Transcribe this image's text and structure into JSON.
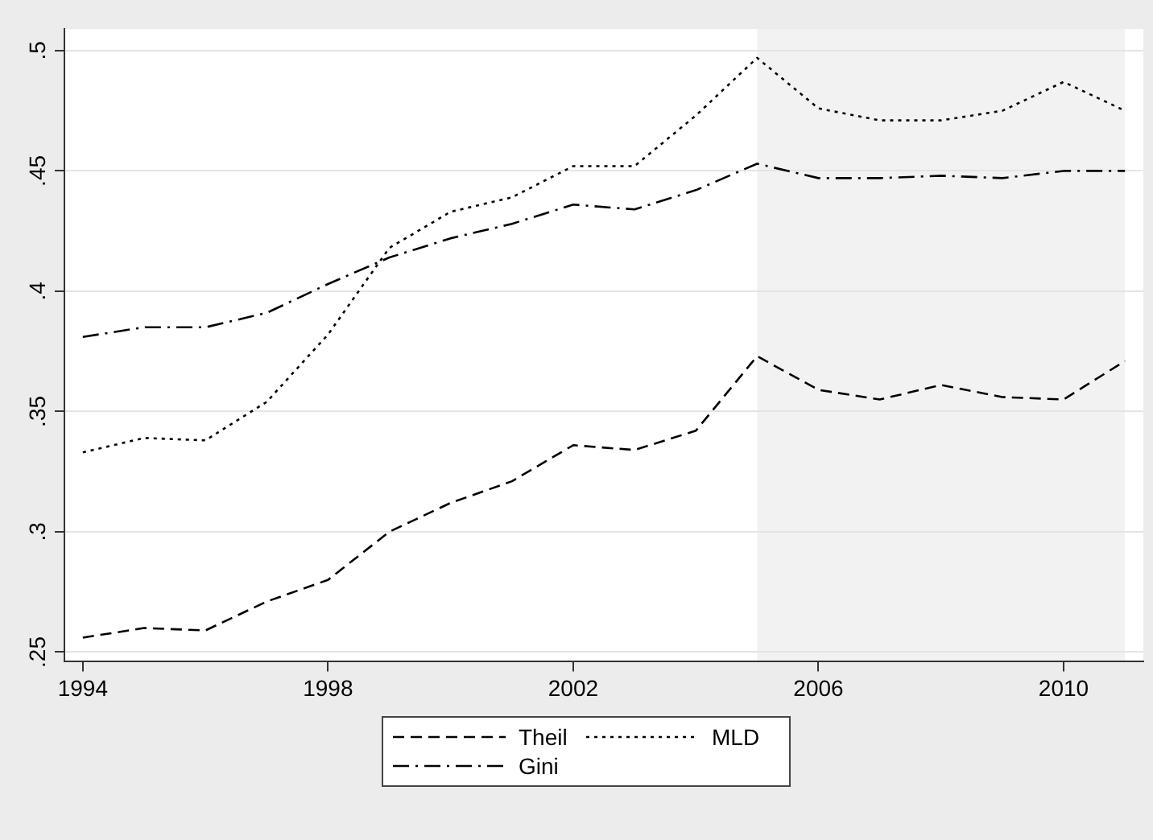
{
  "chart_data": {
    "type": "line",
    "x": [
      1994,
      1995,
      1996,
      1997,
      1998,
      1999,
      2000,
      2001,
      2002,
      2003,
      2004,
      2005,
      2006,
      2007,
      2008,
      2009,
      2010,
      2011
    ],
    "series": [
      {
        "name": "Theil",
        "color": "#000000",
        "line_style": "dashed",
        "values": [
          0.256,
          0.26,
          0.259,
          0.271,
          0.28,
          0.3,
          0.312,
          0.321,
          0.336,
          0.334,
          0.342,
          0.373,
          0.359,
          0.355,
          0.361,
          0.356,
          0.355,
          0.371
        ]
      },
      {
        "name": "MLD",
        "color": "#000000",
        "line_style": "dotted",
        "values": [
          0.333,
          0.339,
          0.338,
          0.354,
          0.382,
          0.418,
          0.433,
          0.439,
          0.452,
          0.452,
          0.473,
          0.497,
          0.476,
          0.471,
          0.471,
          0.475,
          0.487,
          0.475
        ]
      },
      {
        "name": "Gini",
        "color": "#000000",
        "line_style": "dashdot",
        "values": [
          0.381,
          0.385,
          0.385,
          0.391,
          0.403,
          0.414,
          0.422,
          0.428,
          0.436,
          0.434,
          0.442,
          0.453,
          0.447,
          0.447,
          0.448,
          0.447,
          0.45,
          0.45
        ]
      }
    ],
    "xlim": [
      1993.7,
      2011.3
    ],
    "xticks": [
      1994,
      1998,
      2002,
      2006,
      2010
    ],
    "ylim": [
      0.246,
      0.509
    ],
    "yticks": [
      {
        "value": 0.25,
        "label": ".25"
      },
      {
        "value": 0.3,
        "label": ".3"
      },
      {
        "value": 0.35,
        "label": ".35"
      },
      {
        "value": 0.4,
        "label": ".4"
      },
      {
        "value": 0.45,
        "label": ".45"
      },
      {
        "value": 0.5,
        "label": ".5"
      }
    ],
    "bands": [
      {
        "axis": "x",
        "from": 2005,
        "to": 2011,
        "color": "#f2f2f2"
      }
    ],
    "grid": "y",
    "legend": "bottom",
    "marker": "none"
  }
}
